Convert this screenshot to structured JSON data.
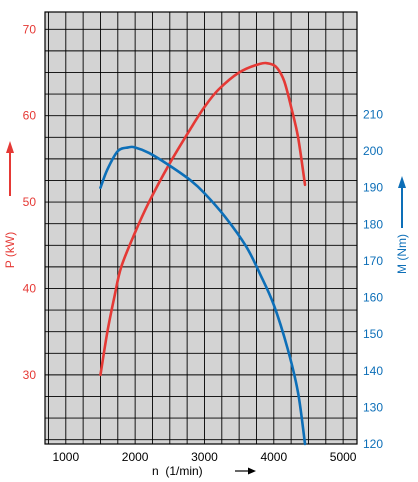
{
  "chart_data": {
    "type": "line",
    "xlabel": "n  (1/min)",
    "x_ticks": [
      1000,
      2000,
      3000,
      4000,
      5000
    ],
    "xlim": [
      700,
      5200
    ],
    "grid": true,
    "y_left": {
      "label": "P (kW)",
      "color": "#e53935",
      "ticks": [
        30,
        40,
        50,
        60,
        70
      ],
      "ylim": [
        22,
        72
      ]
    },
    "y_right": {
      "label": "M (Nm)",
      "color": "#0d6fb8",
      "ticks": [
        120,
        130,
        140,
        150,
        160,
        170,
        180,
        190,
        200,
        210
      ],
      "ylim": [
        120,
        238
      ]
    },
    "series": [
      {
        "axis": "left",
        "color": "#e53935",
        "x": [
          1500,
          1600,
          1700,
          1800,
          2000,
          2200,
          2500,
          2800,
          3000,
          3200,
          3500,
          3800,
          3950,
          4050,
          4150,
          4250,
          4350,
          4450
        ],
        "values": [
          30,
          35,
          39,
          42.5,
          46.5,
          50,
          54.5,
          58.5,
          61,
          63,
          65,
          66,
          66,
          65.5,
          64,
          61,
          57.5,
          52
        ]
      },
      {
        "axis": "right",
        "color": "#0d6fb8",
        "x": [
          1500,
          1600,
          1750,
          1900,
          2000,
          2200,
          2500,
          2800,
          3000,
          3300,
          3600,
          3800,
          4000,
          4200,
          4350,
          4450
        ],
        "values": [
          190,
          195,
          200,
          201,
          201,
          199.5,
          196,
          192,
          188.5,
          182,
          174,
          166.5,
          158,
          146,
          134,
          120
        ]
      }
    ]
  }
}
